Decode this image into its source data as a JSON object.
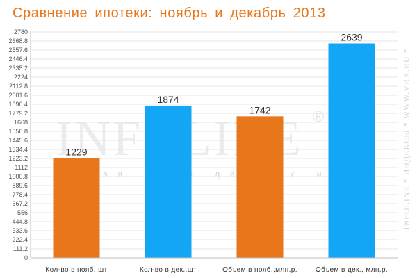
{
  "title": "Сравнение ипотеки: ноябрь и декабрь 2013",
  "side_text": "INFOLINE  *  ИНДЕКСЫ  *  WWW.VRX.RU  *",
  "watermark": {
    "logo": "INFOLINE",
    "registered": "®",
    "tagline": "ая  база  данных   ижим"
  },
  "colors": {
    "november": "#e8761a",
    "december": "#13a6f5",
    "grid": "#e6e6e6",
    "axis": "#bfbfbf"
  },
  "chart_data": {
    "type": "bar",
    "categories": [
      "Кол-во в нояб.,шт",
      "Кол-во в дек.,шт",
      "Объем в нояб.,млн.р.",
      "Объем в дек., млн.р."
    ],
    "values": [
      1229,
      1874,
      1742,
      2639
    ],
    "value_labels": [
      "1229",
      "1874",
      "1742",
      "2639"
    ],
    "bar_colors": [
      "#e8761a",
      "#13a6f5",
      "#e8761a",
      "#13a6f5"
    ],
    "ylim": [
      0,
      2780
    ],
    "yticks": [
      "0",
      "111.2",
      "222.4",
      "333.6",
      "444.8",
      "556",
      "667.2",
      "778.4",
      "889.6",
      "1000.8",
      "1112",
      "1223.2",
      "1334.4",
      "1445.6",
      "1556.8",
      "1668",
      "1779.2",
      "1890.4",
      "2001.6",
      "2112.8",
      "2224",
      "2335.2",
      "2446.4",
      "2557.6",
      "2668.8",
      "2780"
    ],
    "grid": true,
    "legend": "none"
  }
}
